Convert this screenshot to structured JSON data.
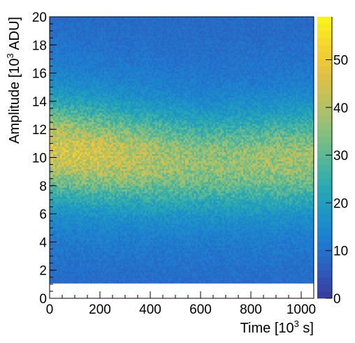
{
  "chart_data": {
    "type": "heatmap",
    "title": "",
    "xlabel": {
      "prefix": "Time [10",
      "sup": "3",
      "suffix": " s]"
    },
    "ylabel": {
      "prefix": "Amplitude [10",
      "sup": "3",
      "suffix": " ADU]"
    },
    "xlim": [
      0,
      1050
    ],
    "ylim": [
      0,
      20
    ],
    "zlim": [
      0,
      59
    ],
    "x_ticks": [
      "0",
      "200",
      "400",
      "600",
      "800",
      "1000"
    ],
    "y_ticks": [
      "0",
      "2",
      "4",
      "6",
      "8",
      "10",
      "12",
      "14",
      "16",
      "18",
      "20"
    ],
    "z_ticks": [
      "0",
      "10",
      "20",
      "30",
      "40",
      "50"
    ],
    "x_bins": 150,
    "y_bins": 150,
    "empty_below_amplitude": 1.1,
    "band": [
      {
        "time": 0,
        "center": 10.6,
        "peak": 46
      },
      {
        "time": 200,
        "center": 10.2,
        "peak": 44
      },
      {
        "time": 400,
        "center": 9.9,
        "peak": 40
      },
      {
        "time": 600,
        "center": 9.6,
        "peak": 36
      },
      {
        "time": 800,
        "center": 9.7,
        "peak": 37
      },
      {
        "time": 1050,
        "center": 9.9,
        "peak": 38
      }
    ],
    "background_level": 8,
    "palette": [
      "#3a3a9a",
      "#2d5cbd",
      "#1e7cd0",
      "#1c95c5",
      "#2ba9b0",
      "#58b895",
      "#8cc079",
      "#bcc15e",
      "#e3c043",
      "#f5d52c",
      "#f9f71a"
    ]
  }
}
